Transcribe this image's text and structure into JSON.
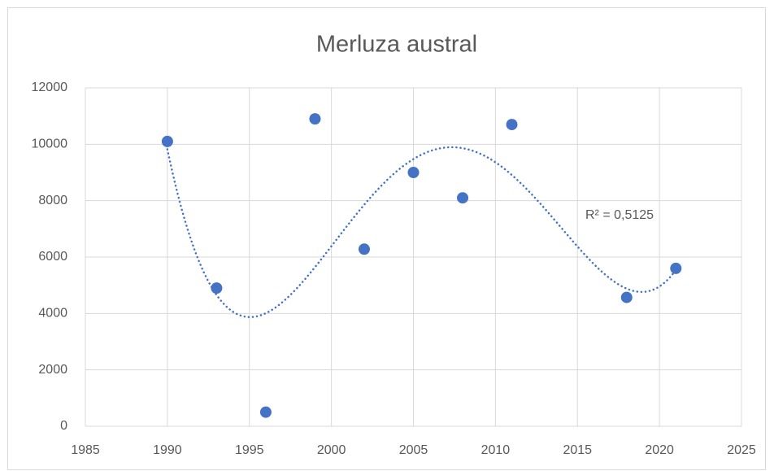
{
  "chart_data": {
    "type": "scatter",
    "title": "Merluza austral",
    "x": [
      1990,
      1993,
      1996,
      1999,
      2002,
      2005,
      2008,
      2011,
      2018,
      2021
    ],
    "values": [
      10100,
      4900,
      500,
      10900,
      6280,
      9000,
      8100,
      10700,
      4570,
      5600
    ],
    "color": "#4472c4",
    "xlim": [
      1985,
      2025
    ],
    "xticks": [
      1985,
      1990,
      1995,
      2000,
      2005,
      2010,
      2015,
      2020,
      2025
    ],
    "ylim": [
      0,
      12000
    ],
    "yticks": [
      0,
      2000,
      4000,
      6000,
      8000,
      10000,
      12000
    ],
    "grid": true,
    "trendline": {
      "type": "polynomial",
      "order": 4,
      "style": "dotted",
      "label": "R² = 0,5125"
    }
  }
}
